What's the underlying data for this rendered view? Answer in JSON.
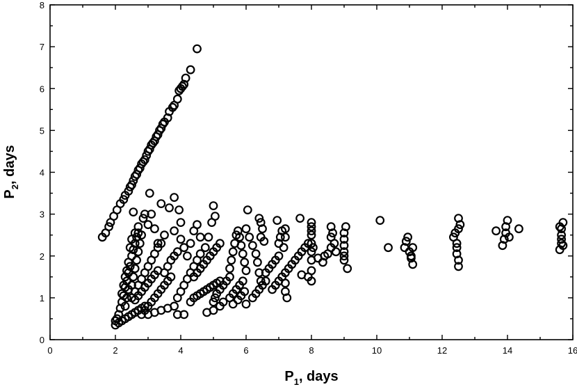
{
  "chart_data": {
    "type": "scatter",
    "title": "",
    "xlabel": {
      "base": "P",
      "sub": "1",
      "rest": ", days"
    },
    "ylabel": {
      "base": "P",
      "sub": "2",
      "rest": ", days"
    },
    "xlim": [
      0,
      16
    ],
    "ylim": [
      0,
      8
    ],
    "xticks": [
      "0",
      "2",
      "4",
      "6",
      "8",
      "10",
      "12",
      "14",
      "16"
    ],
    "yticks": [
      "0",
      "1",
      "2",
      "3",
      "4",
      "5",
      "6",
      "7",
      "8"
    ],
    "grid": false,
    "legend": "none",
    "marker": "open-circle",
    "points": [
      [
        1.6,
        2.45
      ],
      [
        1.7,
        2.55
      ],
      [
        1.8,
        2.7
      ],
      [
        1.85,
        2.8
      ],
      [
        1.95,
        2.95
      ],
      [
        2.05,
        3.1
      ],
      [
        2.15,
        3.25
      ],
      [
        2.25,
        3.35
      ],
      [
        2.3,
        3.45
      ],
      [
        2.4,
        3.55
      ],
      [
        2.45,
        3.65
      ],
      [
        2.5,
        3.7
      ],
      [
        2.55,
        3.8
      ],
      [
        2.6,
        3.9
      ],
      [
        2.65,
        3.95
      ],
      [
        2.7,
        4.05
      ],
      [
        2.75,
        4.1
      ],
      [
        2.8,
        4.2
      ],
      [
        2.85,
        4.25
      ],
      [
        2.9,
        4.3
      ],
      [
        2.95,
        4.4
      ],
      [
        3.0,
        4.5
      ],
      [
        3.05,
        4.55
      ],
      [
        3.1,
        4.65
      ],
      [
        3.15,
        4.7
      ],
      [
        3.2,
        4.75
      ],
      [
        3.25,
        4.85
      ],
      [
        3.3,
        4.9
      ],
      [
        3.35,
        5.0
      ],
      [
        3.4,
        5.05
      ],
      [
        3.45,
        5.15
      ],
      [
        3.5,
        5.2
      ],
      [
        3.6,
        5.3
      ],
      [
        3.65,
        5.45
      ],
      [
        3.75,
        5.55
      ],
      [
        3.8,
        5.6
      ],
      [
        3.9,
        5.75
      ],
      [
        3.95,
        5.95
      ],
      [
        4.0,
        6.0
      ],
      [
        4.05,
        6.05
      ],
      [
        4.1,
        6.1
      ],
      [
        4.15,
        6.25
      ],
      [
        4.3,
        6.45
      ],
      [
        4.5,
        6.95
      ],
      [
        2.0,
        0.45
      ],
      [
        2.05,
        0.5
      ],
      [
        2.1,
        0.6
      ],
      [
        2.15,
        0.75
      ],
      [
        2.2,
        0.9
      ],
      [
        2.25,
        1.05
      ],
      [
        2.3,
        1.25
      ],
      [
        2.35,
        1.4
      ],
      [
        2.4,
        1.6
      ],
      [
        2.45,
        1.75
      ],
      [
        2.0,
        0.35
      ],
      [
        2.1,
        0.4
      ],
      [
        2.2,
        0.45
      ],
      [
        2.3,
        0.5
      ],
      [
        2.4,
        0.55
      ],
      [
        2.5,
        0.6
      ],
      [
        2.6,
        0.65
      ],
      [
        2.7,
        0.7
      ],
      [
        2.8,
        0.75
      ],
      [
        2.9,
        0.8
      ],
      [
        2.3,
        0.8
      ],
      [
        2.35,
        1.0
      ],
      [
        2.4,
        1.2
      ],
      [
        2.5,
        1.3
      ],
      [
        2.55,
        1.5
      ],
      [
        2.6,
        1.7
      ],
      [
        2.65,
        1.9
      ],
      [
        2.7,
        2.1
      ],
      [
        2.75,
        2.3
      ],
      [
        2.8,
        2.5
      ],
      [
        2.5,
        1.0
      ],
      [
        2.6,
        1.15
      ],
      [
        2.7,
        1.3
      ],
      [
        2.8,
        1.45
      ],
      [
        2.9,
        1.6
      ],
      [
        3.0,
        1.75
      ],
      [
        3.1,
        1.9
      ],
      [
        3.2,
        2.05
      ],
      [
        3.3,
        2.2
      ],
      [
        3.4,
        2.3
      ],
      [
        2.8,
        0.6
      ],
      [
        2.9,
        0.7
      ],
      [
        3.0,
        0.8
      ],
      [
        3.1,
        0.9
      ],
      [
        3.2,
        1.0
      ],
      [
        3.3,
        1.1
      ],
      [
        3.4,
        1.2
      ],
      [
        3.5,
        1.3
      ],
      [
        3.6,
        1.4
      ],
      [
        3.7,
        1.5
      ],
      [
        3.0,
        0.6
      ],
      [
        3.2,
        0.65
      ],
      [
        3.4,
        0.7
      ],
      [
        3.6,
        0.75
      ],
      [
        3.8,
        0.8
      ],
      [
        3.5,
        1.6
      ],
      [
        3.6,
        1.75
      ],
      [
        3.7,
        1.9
      ],
      [
        3.8,
        2.0
      ],
      [
        3.9,
        2.1
      ],
      [
        2.45,
        2.2
      ],
      [
        2.5,
        2.4
      ],
      [
        2.6,
        2.55
      ],
      [
        2.7,
        2.7
      ],
      [
        2.85,
        2.9
      ],
      [
        2.9,
        3.0
      ],
      [
        3.0,
        2.75
      ],
      [
        3.1,
        3.0
      ],
      [
        3.2,
        2.65
      ],
      [
        3.3,
        2.3
      ],
      [
        3.5,
        2.5
      ],
      [
        3.8,
        2.6
      ],
      [
        4.0,
        2.4
      ],
      [
        4.1,
        2.2
      ],
      [
        4.2,
        2.0
      ],
      [
        2.55,
        3.05
      ],
      [
        3.05,
        3.5
      ],
      [
        3.4,
        3.25
      ],
      [
        3.65,
        3.15
      ],
      [
        3.8,
        3.4
      ],
      [
        3.95,
        3.1
      ],
      [
        4.0,
        2.8
      ],
      [
        2.6,
        0.95
      ],
      [
        2.7,
        1.05
      ],
      [
        2.8,
        1.15
      ],
      [
        2.9,
        1.25
      ],
      [
        3.0,
        1.35
      ],
      [
        3.1,
        1.45
      ],
      [
        3.2,
        1.55
      ],
      [
        3.3,
        1.65
      ],
      [
        2.2,
        1.1
      ],
      [
        2.25,
        1.3
      ],
      [
        2.3,
        1.5
      ],
      [
        2.35,
        1.65
      ],
      [
        2.4,
        1.85
      ],
      [
        2.5,
        2.0
      ],
      [
        2.55,
        2.15
      ],
      [
        2.6,
        2.3
      ],
      [
        2.65,
        2.45
      ],
      [
        2.7,
        2.55
      ],
      [
        3.9,
        0.6
      ],
      [
        4.1,
        0.6
      ],
      [
        3.9,
        1.0
      ],
      [
        4.0,
        1.15
      ],
      [
        4.1,
        1.3
      ],
      [
        4.2,
        1.45
      ],
      [
        4.3,
        1.6
      ],
      [
        4.4,
        1.75
      ],
      [
        4.5,
        1.9
      ],
      [
        4.6,
        2.05
      ],
      [
        4.3,
        0.9
      ],
      [
        4.4,
        1.0
      ],
      [
        4.5,
        1.05
      ],
      [
        4.6,
        1.1
      ],
      [
        4.7,
        1.15
      ],
      [
        4.8,
        1.2
      ],
      [
        4.9,
        1.25
      ],
      [
        5.0,
        1.3
      ],
      [
        5.1,
        1.35
      ],
      [
        5.2,
        1.4
      ],
      [
        4.4,
        1.5
      ],
      [
        4.5,
        1.6
      ],
      [
        4.6,
        1.7
      ],
      [
        4.7,
        1.8
      ],
      [
        4.8,
        1.9
      ],
      [
        4.9,
        2.0
      ],
      [
        5.0,
        2.1
      ],
      [
        5.1,
        2.2
      ],
      [
        5.2,
        2.3
      ],
      [
        4.85,
        2.45
      ],
      [
        4.75,
        2.2
      ],
      [
        4.6,
        2.45
      ],
      [
        4.4,
        2.6
      ],
      [
        4.95,
        2.8
      ],
      [
        5.05,
        2.95
      ],
      [
        5.0,
        3.2
      ],
      [
        4.5,
        2.75
      ],
      [
        4.3,
        2.3
      ],
      [
        4.8,
        0.65
      ],
      [
        5.0,
        0.7
      ],
      [
        5.2,
        0.8
      ],
      [
        5.0,
        0.9
      ],
      [
        5.05,
        1.0
      ],
      [
        5.1,
        1.1
      ],
      [
        5.2,
        1.2
      ],
      [
        5.3,
        1.3
      ],
      [
        5.4,
        1.4
      ],
      [
        5.5,
        1.5
      ],
      [
        5.3,
        0.9
      ],
      [
        5.5,
        1.0
      ],
      [
        5.6,
        1.1
      ],
      [
        5.7,
        1.2
      ],
      [
        5.8,
        1.3
      ],
      [
        5.9,
        1.4
      ],
      [
        5.6,
        0.85
      ],
      [
        5.75,
        0.95
      ],
      [
        5.85,
        1.05
      ],
      [
        5.95,
        1.15
      ],
      [
        5.5,
        1.7
      ],
      [
        5.55,
        1.9
      ],
      [
        5.6,
        2.1
      ],
      [
        5.65,
        2.3
      ],
      [
        5.7,
        2.5
      ],
      [
        5.75,
        2.6
      ],
      [
        5.8,
        2.45
      ],
      [
        5.85,
        2.25
      ],
      [
        5.9,
        2.05
      ],
      [
        5.95,
        1.85
      ],
      [
        6.0,
        0.85
      ],
      [
        6.0,
        1.65
      ],
      [
        6.05,
        3.1
      ],
      [
        6.0,
        2.65
      ],
      [
        6.1,
        2.45
      ],
      [
        6.2,
        2.25
      ],
      [
        6.3,
        2.05
      ],
      [
        6.35,
        1.85
      ],
      [
        6.4,
        1.6
      ],
      [
        6.45,
        1.4
      ],
      [
        6.2,
        1.0
      ],
      [
        6.3,
        1.1
      ],
      [
        6.4,
        1.2
      ],
      [
        6.5,
        1.3
      ],
      [
        6.6,
        1.4
      ],
      [
        6.45,
        2.45
      ],
      [
        6.5,
        2.65
      ],
      [
        6.45,
        2.8
      ],
      [
        6.4,
        2.9
      ],
      [
        6.55,
        2.35
      ],
      [
        6.6,
        1.6
      ],
      [
        6.7,
        1.7
      ],
      [
        6.8,
        1.8
      ],
      [
        6.9,
        1.9
      ],
      [
        7.0,
        2.0
      ],
      [
        6.8,
        1.2
      ],
      [
        6.9,
        1.3
      ],
      [
        7.0,
        1.4
      ],
      [
        7.1,
        1.5
      ],
      [
        7.2,
        1.6
      ],
      [
        7.0,
        2.3
      ],
      [
        7.05,
        2.45
      ],
      [
        7.1,
        2.6
      ],
      [
        7.2,
        2.65
      ],
      [
        7.2,
        2.45
      ],
      [
        7.15,
        2.2
      ],
      [
        7.2,
        1.35
      ],
      [
        7.2,
        1.15
      ],
      [
        7.25,
        1.0
      ],
      [
        6.95,
        2.85
      ],
      [
        7.3,
        1.7
      ],
      [
        7.4,
        1.8
      ],
      [
        7.5,
        1.9
      ],
      [
        7.6,
        2.0
      ],
      [
        7.7,
        2.1
      ],
      [
        7.8,
        2.2
      ],
      [
        7.9,
        2.3
      ],
      [
        7.65,
        2.9
      ],
      [
        7.7,
        1.55
      ],
      [
        7.9,
        1.5
      ],
      [
        8.0,
        1.4
      ],
      [
        8.0,
        1.65
      ],
      [
        8.0,
        1.9
      ],
      [
        8.0,
        2.1
      ],
      [
        8.0,
        2.3
      ],
      [
        8.0,
        2.5
      ],
      [
        8.0,
        2.7
      ],
      [
        8.0,
        2.8
      ],
      [
        8.0,
        2.6
      ],
      [
        8.05,
        2.2
      ],
      [
        8.2,
        1.95
      ],
      [
        8.35,
        1.85
      ],
      [
        8.4,
        2.0
      ],
      [
        8.5,
        2.05
      ],
      [
        8.6,
        2.2
      ],
      [
        8.6,
        2.45
      ],
      [
        8.6,
        2.7
      ],
      [
        8.65,
        2.55
      ],
      [
        8.7,
        2.3
      ],
      [
        8.75,
        2.1
      ],
      [
        9.0,
        1.9
      ],
      [
        9.0,
        2.1
      ],
      [
        9.0,
        2.25
      ],
      [
        9.0,
        2.4
      ],
      [
        9.0,
        2.55
      ],
      [
        9.05,
        2.7
      ],
      [
        9.1,
        1.7
      ],
      [
        9.0,
        2.0
      ],
      [
        10.1,
        2.85
      ],
      [
        10.35,
        2.2
      ],
      [
        10.85,
        2.2
      ],
      [
        10.9,
        2.35
      ],
      [
        10.95,
        2.45
      ],
      [
        11.0,
        2.1
      ],
      [
        11.05,
        1.95
      ],
      [
        11.1,
        1.8
      ],
      [
        11.1,
        2.2
      ],
      [
        11.05,
        2.0
      ],
      [
        12.35,
        2.45
      ],
      [
        12.4,
        2.55
      ],
      [
        12.45,
        2.3
      ],
      [
        12.45,
        2.05
      ],
      [
        12.5,
        1.9
      ],
      [
        12.5,
        1.75
      ],
      [
        12.45,
        2.2
      ],
      [
        12.5,
        2.65
      ],
      [
        12.5,
        2.9
      ],
      [
        12.55,
        2.75
      ],
      [
        13.65,
        2.6
      ],
      [
        13.85,
        2.25
      ],
      [
        13.9,
        2.4
      ],
      [
        13.95,
        2.55
      ],
      [
        13.95,
        2.7
      ],
      [
        14.0,
        2.85
      ],
      [
        14.05,
        2.45
      ],
      [
        14.35,
        2.65
      ],
      [
        15.6,
        2.15
      ],
      [
        15.65,
        2.3
      ],
      [
        15.65,
        2.5
      ],
      [
        15.65,
        2.65
      ],
      [
        15.7,
        2.8
      ],
      [
        15.65,
        2.4
      ],
      [
        15.7,
        2.25
      ],
      [
        15.6,
        2.7
      ]
    ]
  }
}
